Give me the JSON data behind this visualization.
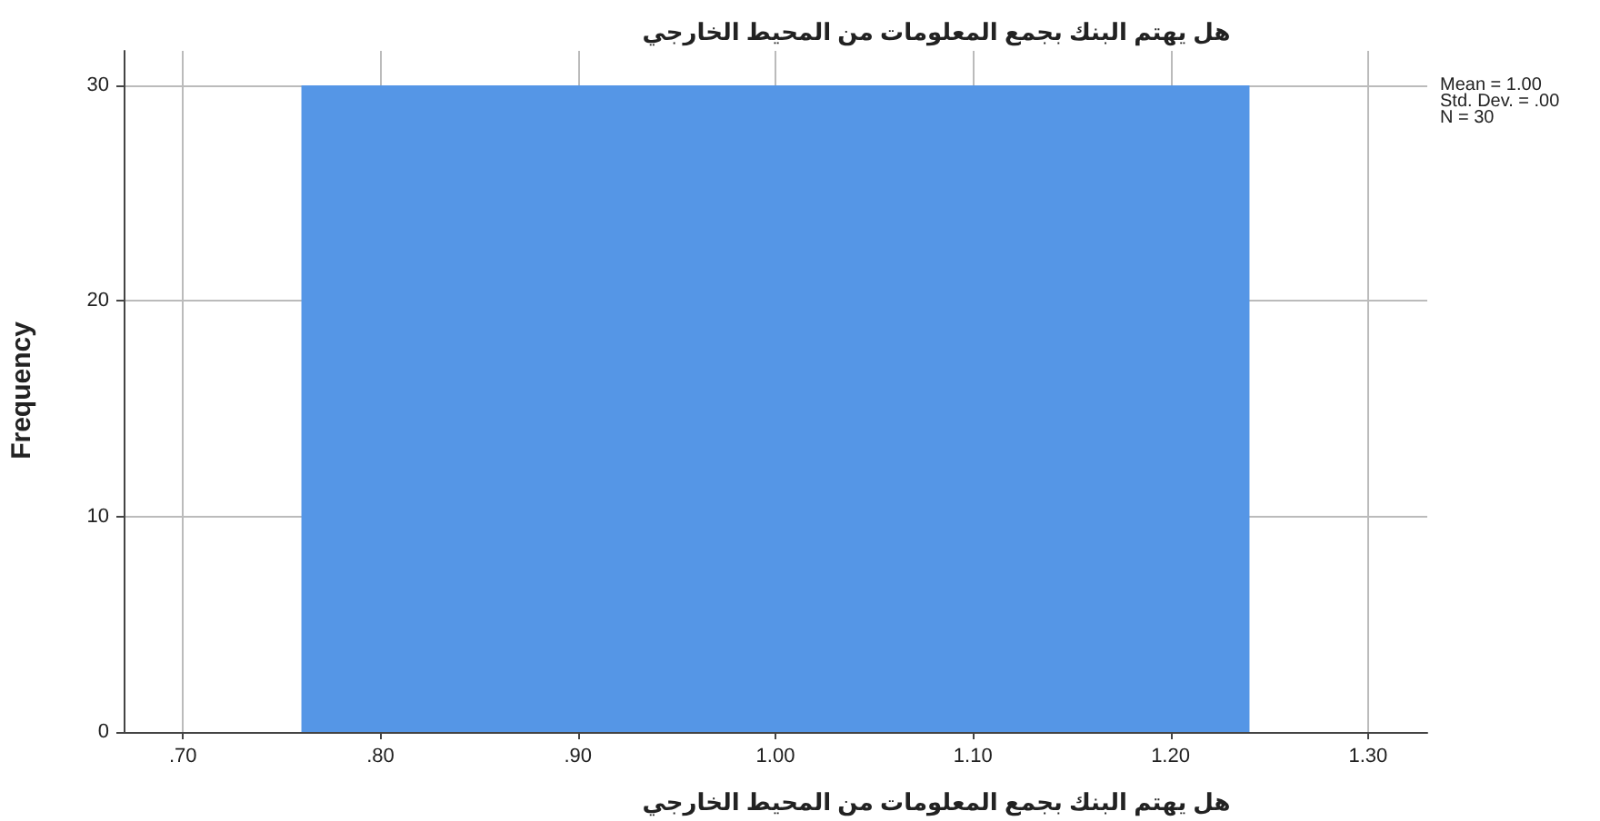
{
  "chart_data": {
    "type": "histogram",
    "title": "هل يهتم البنك بجمع المعلومات من المحيط الخارجي",
    "xlabel": "هل يهتم البنك بجمع المعلومات من المحيط الخارجي",
    "ylabel": "Frequency",
    "bins": [
      0.76,
      1.24
    ],
    "values": [
      30
    ],
    "color": "#5596e6",
    "xlim": [
      0.67,
      1.33
    ],
    "xticks": [
      {
        "value": 0.7,
        "label": ".70"
      },
      {
        "value": 0.8,
        "label": ".80"
      },
      {
        "value": 0.9,
        "label": ".90"
      },
      {
        "value": 1.0,
        "label": "1.00"
      },
      {
        "value": 1.1,
        "label": "1.10"
      },
      {
        "value": 1.2,
        "label": "1.20"
      },
      {
        "value": 1.3,
        "label": "1.30"
      }
    ],
    "ylim": [
      0,
      31.6
    ],
    "yticks": [
      0,
      10,
      20,
      30
    ],
    "grid": true,
    "annotations": [
      "Mean = 1.00",
      "Std. Dev. = .00",
      "N = 30"
    ]
  }
}
